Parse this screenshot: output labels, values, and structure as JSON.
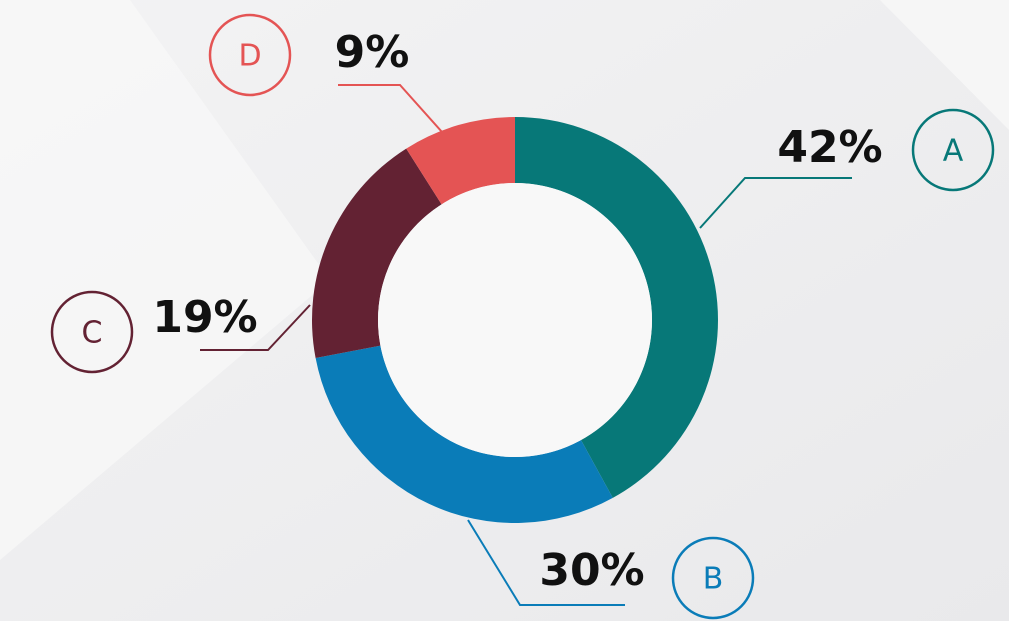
{
  "chart_data": {
    "type": "donut",
    "categories": [
      "A",
      "B",
      "C",
      "D"
    ],
    "values": [
      42,
      30,
      19,
      9
    ],
    "value_labels": [
      "42%",
      "30%",
      "19%",
      "9%"
    ],
    "colors": [
      "#077878",
      "#0a7cb8",
      "#632233",
      "#e45454"
    ]
  }
}
